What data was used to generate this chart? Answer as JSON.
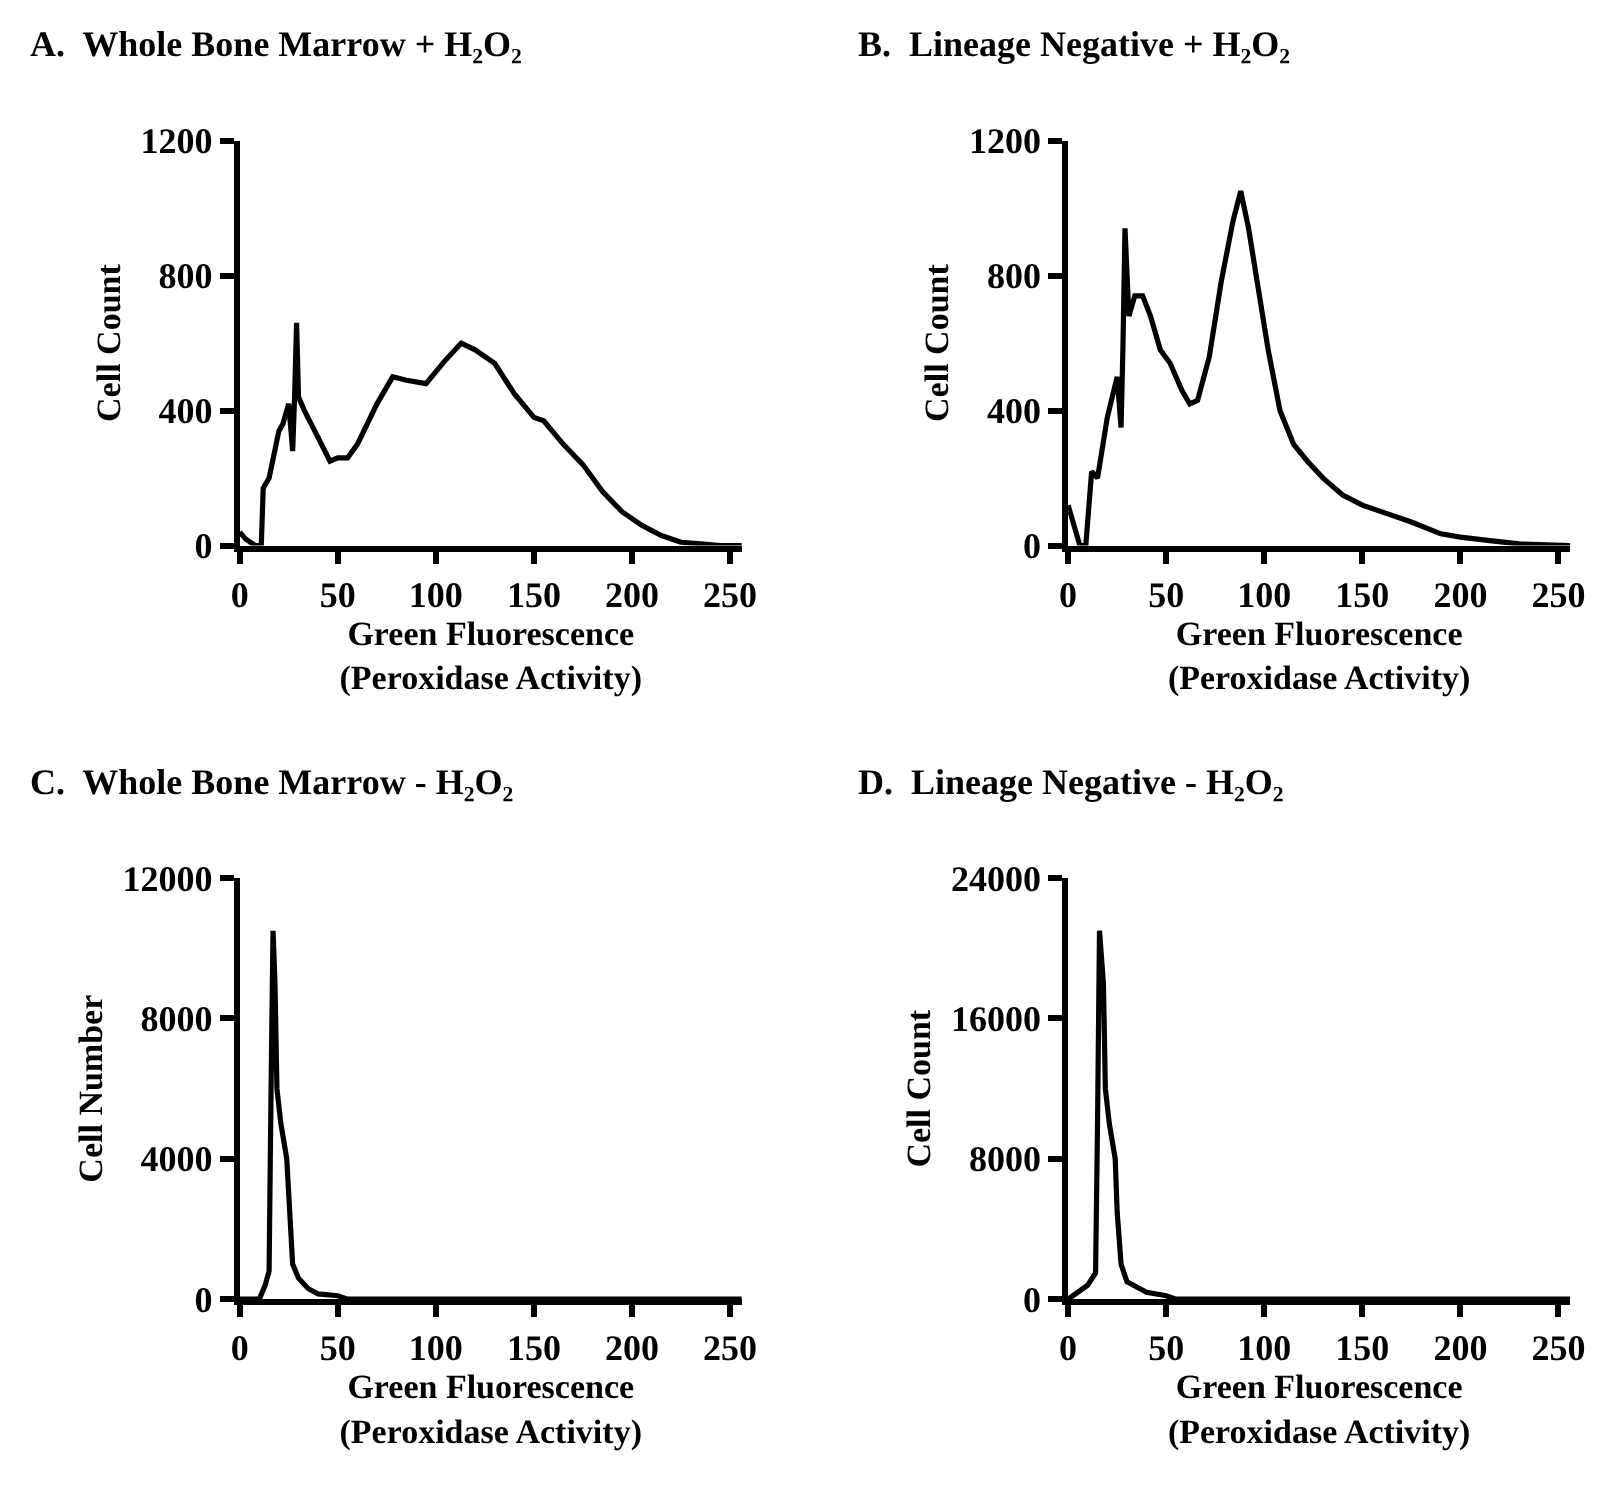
{
  "chart_data": [
    {
      "type": "line",
      "title": "A.  Whole Bone Marrow + H₂O₂",
      "xlabel": "Green Fluorescence\n(Peroxidase Activity)",
      "ylabel": "Cell Count",
      "xlim": [
        0,
        256
      ],
      "xticks": [
        0,
        50,
        100,
        150,
        200,
        250
      ],
      "ylim": [
        0,
        1200
      ],
      "yticks": [
        0,
        400,
        800,
        1200
      ],
      "x": [
        0,
        3,
        8,
        11,
        12,
        15,
        20,
        22,
        25,
        27,
        28,
        29,
        30,
        33,
        40,
        46,
        50,
        55,
        60,
        70,
        78,
        85,
        95,
        105,
        113,
        120,
        130,
        140,
        150,
        155,
        165,
        175,
        185,
        195,
        205,
        215,
        225,
        235,
        245,
        256
      ],
      "series": [
        {
          "color": "#000000",
          "values": [
            40,
            20,
            0,
            0,
            170,
            200,
            340,
            360,
            420,
            280,
            440,
            660,
            440,
            400,
            320,
            250,
            260,
            260,
            300,
            420,
            500,
            490,
            480,
            550,
            600,
            580,
            540,
            450,
            380,
            370,
            300,
            240,
            160,
            100,
            60,
            30,
            10,
            5,
            0,
            0
          ]
        }
      ]
    },
    {
      "type": "line",
      "title": "B.  Lineage Negative + H₂O₂",
      "xlabel": "Green Fluorescence\n(Peroxidase Activity)",
      "ylabel": "Cell Count",
      "xlim": [
        0,
        256
      ],
      "xticks": [
        0,
        50,
        100,
        150,
        200,
        250
      ],
      "ylim": [
        0,
        1200
      ],
      "yticks": [
        0,
        400,
        800,
        1200
      ],
      "x": [
        0,
        3,
        6,
        9,
        12,
        15,
        20,
        25,
        27,
        28,
        29,
        31,
        34,
        38,
        42,
        47,
        52,
        58,
        62,
        66,
        72,
        78,
        84,
        88,
        92,
        97,
        102,
        108,
        115,
        122,
        130,
        140,
        150,
        160,
        175,
        190,
        200,
        215,
        230,
        256
      ],
      "series": [
        {
          "color": "#000000",
          "values": [
            120,
            60,
            0,
            0,
            220,
            200,
            380,
            500,
            350,
            600,
            940,
            680,
            740,
            740,
            680,
            580,
            540,
            460,
            420,
            430,
            560,
            780,
            960,
            1050,
            940,
            760,
            580,
            400,
            300,
            250,
            200,
            150,
            120,
            100,
            70,
            35,
            25,
            15,
            5,
            0
          ]
        }
      ]
    },
    {
      "type": "line",
      "title": "C.  Whole Bone Marrow - H₂O₂",
      "xlabel": "Green Fluorescence\n(Peroxidase Activity)",
      "ylabel": "Cell Number",
      "xlim": [
        0,
        256
      ],
      "xticks": [
        0,
        50,
        100,
        150,
        200,
        250
      ],
      "ylim": [
        0,
        12000
      ],
      "yticks": [
        0,
        4000,
        8000,
        12000
      ],
      "x": [
        0,
        10,
        13,
        15,
        16,
        17,
        18,
        19,
        21,
        24,
        26,
        27,
        30,
        35,
        40,
        50,
        55,
        256
      ],
      "series": [
        {
          "color": "#000000",
          "values": [
            0,
            0,
            400,
            800,
            6000,
            10500,
            9000,
            6000,
            5000,
            4000,
            2000,
            1000,
            600,
            300,
            150,
            100,
            0,
            0
          ]
        }
      ]
    },
    {
      "type": "line",
      "title": "D.  Lineage Negative - H₂O₂",
      "xlabel": "Green Fluorescence\n(Peroxidase Activity)",
      "ylabel": "Cell Count",
      "xlim": [
        0,
        256
      ],
      "xticks": [
        0,
        50,
        100,
        150,
        200,
        250
      ],
      "ylim": [
        0,
        24000
      ],
      "yticks": [
        0,
        8000,
        16000,
        24000
      ],
      "x": [
        0,
        10,
        14,
        15,
        16,
        18,
        19,
        21,
        24,
        25,
        27,
        30,
        40,
        50,
        55,
        256
      ],
      "series": [
        {
          "color": "#000000",
          "values": [
            0,
            800,
            1500,
            10000,
            21000,
            18000,
            12000,
            10000,
            8000,
            5000,
            2000,
            1000,
            400,
            200,
            0,
            0
          ]
        }
      ]
    }
  ]
}
